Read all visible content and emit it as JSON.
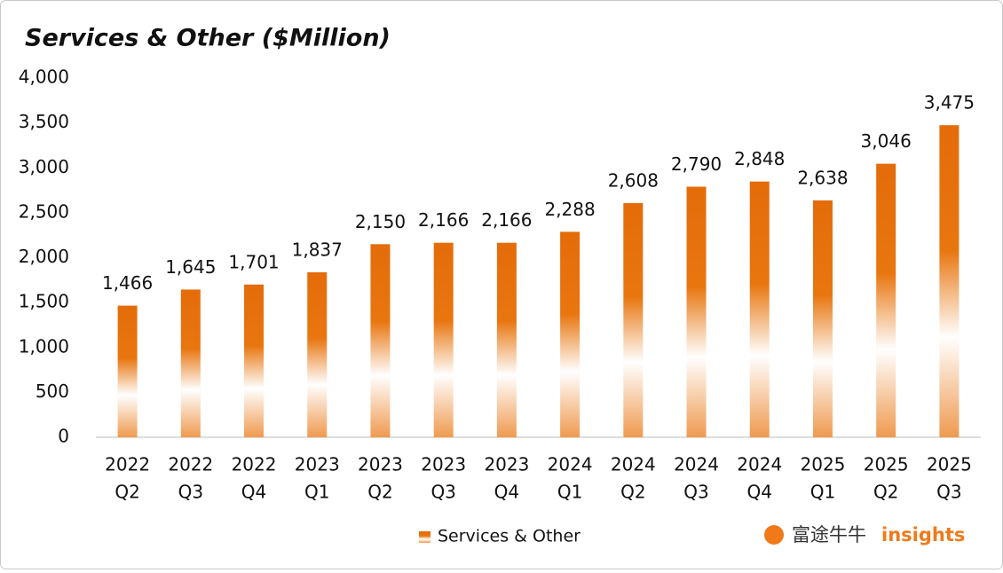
{
  "chart_data": {
    "type": "bar",
    "title": "Services & Other ($Million)",
    "categories": [
      [
        "2022",
        "Q2"
      ],
      [
        "2022",
        "Q3"
      ],
      [
        "2022",
        "Q4"
      ],
      [
        "2023",
        "Q1"
      ],
      [
        "2023",
        "Q2"
      ],
      [
        "2023",
        "Q3"
      ],
      [
        "2023",
        "Q4"
      ],
      [
        "2024",
        "Q1"
      ],
      [
        "2024",
        "Q2"
      ],
      [
        "2024",
        "Q3"
      ],
      [
        "2024",
        "Q4"
      ],
      [
        "2025",
        "Q1"
      ],
      [
        "2025",
        "Q2"
      ],
      [
        "2025",
        "Q3"
      ]
    ],
    "series": [
      {
        "name": "Services & Other",
        "color": "#e46c0a",
        "values": [
          1466,
          1645,
          1701,
          1837,
          2150,
          2166,
          2166,
          2288,
          2608,
          2790,
          2848,
          2638,
          3046,
          3475
        ],
        "value_labels": [
          "1,466",
          "1,645",
          "1,701",
          "1,837",
          "2,150",
          "2,166",
          "2,166",
          "2,288",
          "2,608",
          "2,790",
          "2,848",
          "2,638",
          "3,046",
          "3,475"
        ]
      }
    ],
    "ylim": [
      0,
      4000
    ],
    "yticks": [
      0,
      500,
      {
        "value": 1000,
        "label": "1,000"
      },
      {
        "value": 1500,
        "label": "1,500"
      },
      {
        "value": 2000,
        "label": "2,000"
      },
      {
        "value": 2500,
        "label": "2,500"
      },
      {
        "value": 3000,
        "label": "3,000"
      },
      {
        "value": 3500,
        "label": "3,500"
      },
      {
        "value": 4000,
        "label": "4,000"
      }
    ],
    "grid": false,
    "legend": "bottom",
    "watermark": [
      "富途牛牛",
      "insights"
    ]
  }
}
